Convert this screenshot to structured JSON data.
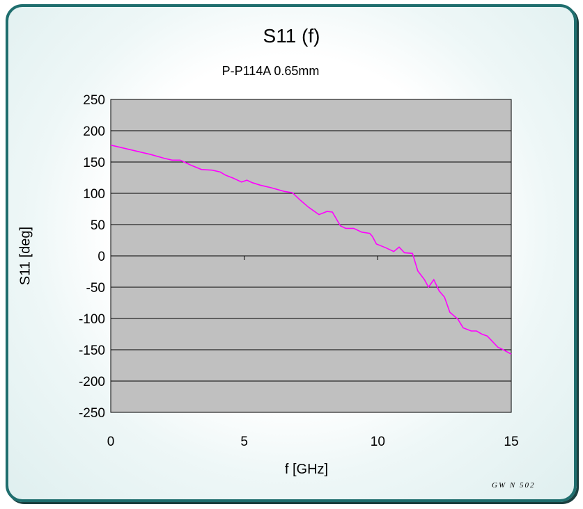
{
  "chart_data": {
    "type": "line",
    "title": "S11 (f)",
    "subtitle": "P-P114A  0.65mm",
    "xlabel": "f [GHz]",
    "ylabel": "S11 [deg]",
    "xlim": [
      0,
      15
    ],
    "ylim": [
      -250,
      250
    ],
    "x_ticks": [
      0,
      5,
      10,
      15
    ],
    "y_ticks": [
      250,
      200,
      150,
      100,
      50,
      0,
      -50,
      -100,
      -150,
      -200,
      -250
    ],
    "grid": "horizontal",
    "legend": "none",
    "series": [
      {
        "color": "#ff00ff",
        "x": [
          0,
          0.5,
          1.0,
          1.5,
          2.0,
          2.3,
          2.6,
          3.0,
          3.4,
          3.8,
          4.1,
          4.3,
          4.6,
          4.9,
          5.1,
          5.3,
          5.6,
          6.0,
          6.5,
          6.8,
          7.1,
          7.4,
          7.6,
          7.8,
          8.1,
          8.3,
          8.6,
          8.8,
          9.1,
          9.4,
          9.7,
          9.8,
          9.95,
          10.3,
          10.6,
          10.8,
          11.0,
          11.3,
          11.5,
          11.75,
          11.9,
          12.1,
          12.3,
          12.5,
          12.7,
          13.0,
          13.2,
          13.5,
          13.7,
          13.9,
          14.1,
          14.3,
          14.5,
          14.7,
          15.0
        ],
        "y": [
          177,
          172,
          167,
          162,
          156,
          153,
          153,
          145,
          138,
          137,
          134,
          129,
          124,
          118,
          121,
          117,
          113,
          109,
          103,
          101,
          89,
          78,
          72,
          66,
          71,
          70,
          48,
          44,
          44,
          38,
          36,
          31,
          19,
          13,
          7,
          14,
          5,
          4,
          -24,
          -38,
          -50,
          -38,
          -56,
          -66,
          -90,
          -101,
          -115,
          -120,
          -120,
          -125,
          -128,
          -137,
          -146,
          -150,
          -157
        ]
      }
    ]
  },
  "watermark": "GW N 502"
}
